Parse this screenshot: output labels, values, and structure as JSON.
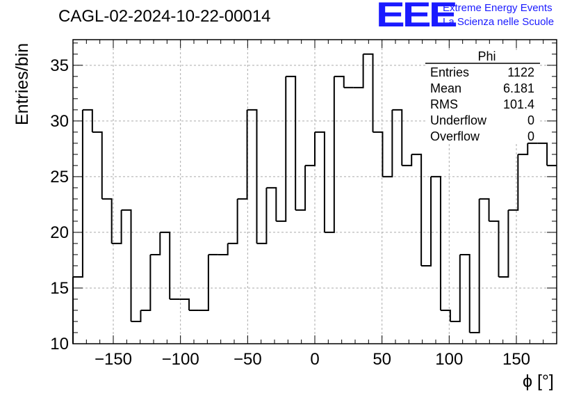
{
  "title": "CAGL-02-2024-10-22-00014",
  "logo": {
    "mark": "EEE",
    "line1": "Extreme Energy Events",
    "line2": "La Scienza nelle Scuole",
    "color": "#1a1aff"
  },
  "stats_box": {
    "title": "Phi",
    "rows": [
      {
        "label": "Entries",
        "value": "1122"
      },
      {
        "label": "Mean",
        "value": "6.181"
      },
      {
        "label": "RMS",
        "value": "101.4"
      },
      {
        "label": "Underflow",
        "value": "0"
      },
      {
        "label": "Overflow",
        "value": "0"
      }
    ]
  },
  "chart_data": {
    "type": "bar",
    "subtype": "step-histogram",
    "xlabel": "ϕ [°]",
    "ylabel": "Entries/bin",
    "xlim": [
      -180,
      180
    ],
    "ylim": [
      10,
      37.3
    ],
    "bin_width": 7.2,
    "bin_edges_start": -180,
    "xticks": [
      -150,
      -100,
      -50,
      0,
      50,
      100,
      150
    ],
    "yticks": [
      10,
      15,
      20,
      25,
      30,
      35
    ],
    "grid": true,
    "values": [
      16,
      31,
      29,
      23,
      19,
      22,
      12,
      13,
      18,
      20,
      14,
      14,
      13,
      13,
      18,
      18,
      19,
      23,
      31,
      19,
      24,
      21,
      34,
      22,
      26,
      29,
      20,
      34,
      33,
      33,
      36,
      29,
      25,
      31,
      26,
      27,
      17,
      25,
      13,
      12,
      18,
      11,
      23,
      21,
      16,
      22,
      27,
      28,
      28,
      26
    ]
  }
}
